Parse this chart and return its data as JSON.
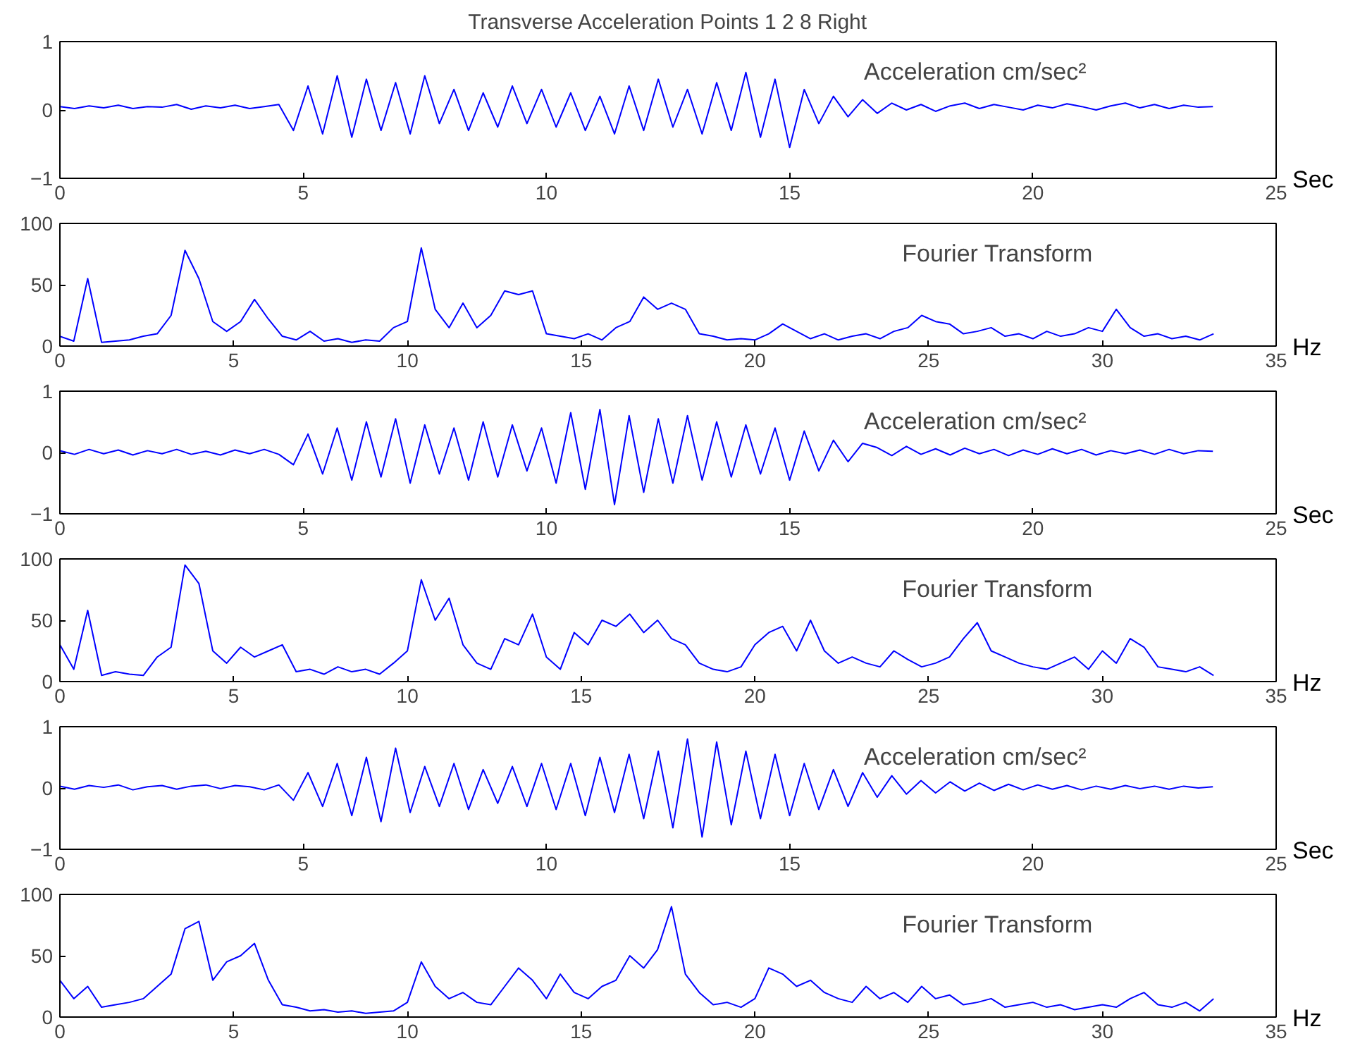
{
  "chart_data": [
    {
      "type": "line",
      "title": "Transverse Acceleration Points 1 2 8 Right",
      "xlabel": "Sec",
      "annotations": [
        "Acceleration  cm/sec²"
      ],
      "xlim": [
        0,
        25
      ],
      "xticks": [
        0,
        5,
        10,
        15,
        20,
        25
      ],
      "ylim": [
        -1,
        1
      ],
      "yticks": [
        -1,
        0,
        1
      ],
      "grid": false,
      "x": [
        0,
        0.3,
        0.6,
        0.9,
        1.2,
        1.5,
        1.8,
        2.1,
        2.4,
        2.7,
        3.0,
        3.3,
        3.6,
        3.9,
        4.2,
        4.5,
        4.8,
        5.1,
        5.4,
        5.7,
        6.0,
        6.3,
        6.6,
        6.9,
        7.2,
        7.5,
        7.8,
        8.1,
        8.4,
        8.7,
        9.0,
        9.3,
        9.6,
        9.9,
        10.2,
        10.5,
        10.8,
        11.1,
        11.4,
        11.7,
        12.0,
        12.3,
        12.6,
        12.9,
        13.2,
        13.5,
        13.8,
        14.1,
        14.4,
        14.7,
        15.0,
        15.3,
        15.6,
        15.9,
        16.2,
        16.5,
        16.8,
        17.1,
        17.4,
        17.7,
        18.0,
        18.3,
        18.6,
        18.9,
        19.2,
        19.5,
        19.8,
        20.1,
        20.4,
        20.7,
        21.0,
        21.3,
        21.6,
        21.9,
        22.2,
        22.5,
        22.8,
        23.1,
        23.4,
        23.7
      ],
      "series": [
        {
          "color": "#0000ff",
          "values": [
            0.05,
            0.02,
            0.06,
            0.03,
            0.07,
            0.02,
            0.05,
            0.04,
            0.08,
            0.01,
            0.06,
            0.03,
            0.07,
            0.02,
            0.05,
            0.08,
            -0.3,
            0.35,
            -0.35,
            0.5,
            -0.4,
            0.45,
            -0.3,
            0.4,
            -0.35,
            0.5,
            -0.2,
            0.3,
            -0.3,
            0.25,
            -0.25,
            0.35,
            -0.2,
            0.3,
            -0.25,
            0.25,
            -0.3,
            0.2,
            -0.35,
            0.35,
            -0.3,
            0.45,
            -0.25,
            0.3,
            -0.35,
            0.4,
            -0.3,
            0.55,
            -0.4,
            0.45,
            -0.55,
            0.3,
            -0.2,
            0.2,
            -0.1,
            0.15,
            -0.05,
            0.1,
            0,
            0.08,
            -0.02,
            0.06,
            0.1,
            0.02,
            0.08,
            0.04,
            0,
            0.07,
            0.03,
            0.09,
            0.05,
            0,
            0.06,
            0.1,
            0.03,
            0.08,
            0.02,
            0.07,
            0.04,
            0.05
          ]
        }
      ]
    },
    {
      "type": "line",
      "xlabel": "Hz",
      "annotations": [
        "Fourier Transform"
      ],
      "xlim": [
        0,
        35
      ],
      "xticks": [
        0,
        5,
        10,
        15,
        20,
        25,
        30,
        35
      ],
      "ylim": [
        0,
        100
      ],
      "yticks": [
        0,
        50,
        100
      ],
      "grid": false,
      "x": [
        0,
        0.4,
        0.8,
        1.2,
        1.6,
        2.0,
        2.4,
        2.8,
        3.2,
        3.6,
        4.0,
        4.4,
        4.8,
        5.2,
        5.6,
        6.0,
        6.4,
        6.8,
        7.2,
        7.6,
        8.0,
        8.4,
        8.8,
        9.2,
        9.6,
        10.0,
        10.4,
        10.8,
        11.2,
        11.6,
        12.0,
        12.4,
        12.8,
        13.2,
        13.6,
        14.0,
        14.4,
        14.8,
        15.2,
        15.6,
        16.0,
        16.4,
        16.8,
        17.2,
        17.6,
        18.0,
        18.4,
        18.8,
        19.2,
        19.6,
        20.0,
        20.4,
        20.8,
        21.2,
        21.6,
        22.0,
        22.4,
        22.8,
        23.2,
        23.6,
        24.0,
        24.4,
        24.8,
        25.2,
        25.6,
        26.0,
        26.4,
        26.8,
        27.2,
        27.6,
        28.0,
        28.4,
        28.8,
        29.2,
        29.6,
        30.0,
        30.4,
        30.8,
        31.2,
        31.6,
        32.0,
        32.4,
        32.8,
        33.2
      ],
      "series": [
        {
          "color": "#0000ff",
          "values": [
            8,
            4,
            55,
            3,
            4,
            5,
            8,
            10,
            25,
            78,
            55,
            20,
            12,
            20,
            38,
            22,
            8,
            5,
            12,
            4,
            6,
            3,
            5,
            4,
            15,
            20,
            80,
            30,
            15,
            35,
            15,
            25,
            45,
            42,
            45,
            10,
            8,
            6,
            10,
            5,
            15,
            20,
            40,
            30,
            35,
            30,
            10,
            8,
            5,
            6,
            5,
            10,
            18,
            12,
            6,
            10,
            5,
            8,
            10,
            6,
            12,
            15,
            25,
            20,
            18,
            10,
            12,
            15,
            8,
            10,
            6,
            12,
            8,
            10,
            15,
            12,
            30,
            15,
            8,
            10,
            6,
            8,
            5,
            10
          ]
        }
      ]
    },
    {
      "type": "line",
      "xlabel": "Sec",
      "annotations": [
        "Acceleration  cm/sec²"
      ],
      "xlim": [
        0,
        25
      ],
      "xticks": [
        0,
        5,
        10,
        15,
        20,
        25
      ],
      "ylim": [
        -1,
        1
      ],
      "yticks": [
        -1,
        0,
        1
      ],
      "grid": false,
      "x": [
        0,
        0.3,
        0.6,
        0.9,
        1.2,
        1.5,
        1.8,
        2.1,
        2.4,
        2.7,
        3.0,
        3.3,
        3.6,
        3.9,
        4.2,
        4.5,
        4.8,
        5.1,
        5.4,
        5.7,
        6.0,
        6.3,
        6.6,
        6.9,
        7.2,
        7.5,
        7.8,
        8.1,
        8.4,
        8.7,
        9.0,
        9.3,
        9.6,
        9.9,
        10.2,
        10.5,
        10.8,
        11.1,
        11.4,
        11.7,
        12.0,
        12.3,
        12.6,
        12.9,
        13.2,
        13.5,
        13.8,
        14.1,
        14.4,
        14.7,
        15.0,
        15.3,
        15.6,
        15.9,
        16.2,
        16.5,
        16.8,
        17.1,
        17.4,
        17.7,
        18.0,
        18.3,
        18.6,
        18.9,
        19.2,
        19.5,
        19.8,
        20.1,
        20.4,
        20.7,
        21.0,
        21.3,
        21.6,
        21.9,
        22.2,
        22.5,
        22.8,
        23.1,
        23.4,
        23.7
      ],
      "series": [
        {
          "color": "#0000ff",
          "values": [
            0.03,
            -0.03,
            0.05,
            -0.02,
            0.04,
            -0.04,
            0.03,
            -0.02,
            0.05,
            -0.03,
            0.02,
            -0.04,
            0.04,
            -0.02,
            0.05,
            -0.03,
            -0.2,
            0.3,
            -0.35,
            0.4,
            -0.45,
            0.5,
            -0.4,
            0.55,
            -0.5,
            0.45,
            -0.35,
            0.4,
            -0.45,
            0.5,
            -0.4,
            0.45,
            -0.3,
            0.4,
            -0.5,
            0.65,
            -0.6,
            0.7,
            -0.85,
            0.6,
            -0.65,
            0.55,
            -0.5,
            0.6,
            -0.45,
            0.5,
            -0.4,
            0.45,
            -0.35,
            0.4,
            -0.45,
            0.35,
            -0.3,
            0.2,
            -0.15,
            0.15,
            0.08,
            -0.05,
            0.1,
            -0.03,
            0.06,
            -0.04,
            0.07,
            -0.02,
            0.05,
            -0.05,
            0.04,
            -0.03,
            0.06,
            -0.02,
            0.05,
            -0.04,
            0.03,
            -0.02,
            0.04,
            -0.03,
            0.05,
            -0.02,
            0.03,
            0.02
          ]
        }
      ]
    },
    {
      "type": "line",
      "xlabel": "Hz",
      "annotations": [
        "Fourier Transform"
      ],
      "xlim": [
        0,
        35
      ],
      "xticks": [
        0,
        5,
        10,
        15,
        20,
        25,
        30,
        35
      ],
      "ylim": [
        0,
        100
      ],
      "yticks": [
        0,
        50,
        100
      ],
      "grid": false,
      "x": [
        0,
        0.4,
        0.8,
        1.2,
        1.6,
        2.0,
        2.4,
        2.8,
        3.2,
        3.6,
        4.0,
        4.4,
        4.8,
        5.2,
        5.6,
        6.0,
        6.4,
        6.8,
        7.2,
        7.6,
        8.0,
        8.4,
        8.8,
        9.2,
        9.6,
        10.0,
        10.4,
        10.8,
        11.2,
        11.6,
        12.0,
        12.4,
        12.8,
        13.2,
        13.6,
        14.0,
        14.4,
        14.8,
        15.2,
        15.6,
        16.0,
        16.4,
        16.8,
        17.2,
        17.6,
        18.0,
        18.4,
        18.8,
        19.2,
        19.6,
        20.0,
        20.4,
        20.8,
        21.2,
        21.6,
        22.0,
        22.4,
        22.8,
        23.2,
        23.6,
        24.0,
        24.4,
        24.8,
        25.2,
        25.6,
        26.0,
        26.4,
        26.8,
        27.2,
        27.6,
        28.0,
        28.4,
        28.8,
        29.2,
        29.6,
        30.0,
        30.4,
        30.8,
        31.2,
        31.6,
        32.0,
        32.4,
        32.8,
        33.2
      ],
      "series": [
        {
          "color": "#0000ff",
          "values": [
            30,
            10,
            58,
            5,
            8,
            6,
            5,
            20,
            28,
            95,
            80,
            25,
            15,
            28,
            20,
            25,
            30,
            8,
            10,
            6,
            12,
            8,
            10,
            6,
            15,
            25,
            83,
            50,
            68,
            30,
            15,
            10,
            35,
            30,
            55,
            20,
            10,
            40,
            30,
            50,
            45,
            55,
            40,
            50,
            35,
            30,
            15,
            10,
            8,
            12,
            30,
            40,
            45,
            25,
            50,
            25,
            15,
            20,
            15,
            12,
            25,
            18,
            12,
            15,
            20,
            35,
            48,
            25,
            20,
            15,
            12,
            10,
            15,
            20,
            10,
            25,
            15,
            35,
            28,
            12,
            10,
            8,
            12,
            5
          ]
        }
      ]
    },
    {
      "type": "line",
      "xlabel": "Sec",
      "annotations": [
        "Acceleration  cm/sec²"
      ],
      "xlim": [
        0,
        25
      ],
      "xticks": [
        0,
        5,
        10,
        15,
        20,
        25
      ],
      "ylim": [
        -1,
        1
      ],
      "yticks": [
        -1,
        0,
        1
      ],
      "grid": false,
      "x": [
        0,
        0.3,
        0.6,
        0.9,
        1.2,
        1.5,
        1.8,
        2.1,
        2.4,
        2.7,
        3.0,
        3.3,
        3.6,
        3.9,
        4.2,
        4.5,
        4.8,
        5.1,
        5.4,
        5.7,
        6.0,
        6.3,
        6.6,
        6.9,
        7.2,
        7.5,
        7.8,
        8.1,
        8.4,
        8.7,
        9.0,
        9.3,
        9.6,
        9.9,
        10.2,
        10.5,
        10.8,
        11.1,
        11.4,
        11.7,
        12.0,
        12.3,
        12.6,
        12.9,
        13.2,
        13.5,
        13.8,
        14.1,
        14.4,
        14.7,
        15.0,
        15.3,
        15.6,
        15.9,
        16.2,
        16.5,
        16.8,
        17.1,
        17.4,
        17.7,
        18.0,
        18.3,
        18.6,
        18.9,
        19.2,
        19.5,
        19.8,
        20.1,
        20.4,
        20.7,
        21.0,
        21.3,
        21.6,
        21.9,
        22.2,
        22.5,
        22.8,
        23.1,
        23.4,
        23.7
      ],
      "series": [
        {
          "color": "#0000ff",
          "values": [
            0.03,
            -0.02,
            0.04,
            0.01,
            0.05,
            -0.03,
            0.02,
            0.04,
            -0.02,
            0.03,
            0.05,
            -0.01,
            0.04,
            0.02,
            -0.03,
            0.05,
            -0.2,
            0.25,
            -0.3,
            0.4,
            -0.45,
            0.5,
            -0.55,
            0.65,
            -0.4,
            0.35,
            -0.3,
            0.4,
            -0.35,
            0.3,
            -0.25,
            0.35,
            -0.3,
            0.4,
            -0.35,
            0.4,
            -0.45,
            0.5,
            -0.4,
            0.55,
            -0.5,
            0.6,
            -0.65,
            0.8,
            -0.8,
            0.75,
            -0.6,
            0.6,
            -0.5,
            0.55,
            -0.45,
            0.4,
            -0.35,
            0.3,
            -0.3,
            0.25,
            -0.15,
            0.2,
            -0.1,
            0.12,
            -0.08,
            0.1,
            -0.05,
            0.08,
            -0.04,
            0.06,
            -0.03,
            0.05,
            -0.02,
            0.04,
            -0.03,
            0.03,
            -0.02,
            0.04,
            -0.01,
            0.03,
            -0.02,
            0.03,
            0,
            0.02
          ]
        }
      ]
    },
    {
      "type": "line",
      "xlabel": "Hz",
      "annotations": [
        "Fourier Transform"
      ],
      "xlim": [
        0,
        35
      ],
      "xticks": [
        0,
        5,
        10,
        15,
        20,
        25,
        30,
        35
      ],
      "ylim": [
        0,
        100
      ],
      "yticks": [
        0,
        50,
        100
      ],
      "grid": false,
      "x": [
        0,
        0.4,
        0.8,
        1.2,
        1.6,
        2.0,
        2.4,
        2.8,
        3.2,
        3.6,
        4.0,
        4.4,
        4.8,
        5.2,
        5.6,
        6.0,
        6.4,
        6.8,
        7.2,
        7.6,
        8.0,
        8.4,
        8.8,
        9.2,
        9.6,
        10.0,
        10.4,
        10.8,
        11.2,
        11.6,
        12.0,
        12.4,
        12.8,
        13.2,
        13.6,
        14.0,
        14.4,
        14.8,
        15.2,
        15.6,
        16.0,
        16.4,
        16.8,
        17.2,
        17.6,
        18.0,
        18.4,
        18.8,
        19.2,
        19.6,
        20.0,
        20.4,
        20.8,
        21.2,
        21.6,
        22.0,
        22.4,
        22.8,
        23.2,
        23.6,
        24.0,
        24.4,
        24.8,
        25.2,
        25.6,
        26.0,
        26.4,
        26.8,
        27.2,
        27.6,
        28.0,
        28.4,
        28.8,
        29.2,
        29.6,
        30.0,
        30.4,
        30.8,
        31.2,
        31.6,
        32.0,
        32.4,
        32.8,
        33.2
      ],
      "series": [
        {
          "color": "#0000ff",
          "values": [
            30,
            15,
            25,
            8,
            10,
            12,
            15,
            25,
            35,
            72,
            78,
            30,
            45,
            50,
            60,
            30,
            10,
            8,
            5,
            6,
            4,
            5,
            3,
            4,
            5,
            12,
            45,
            25,
            15,
            20,
            12,
            10,
            25,
            40,
            30,
            15,
            35,
            20,
            15,
            25,
            30,
            50,
            40,
            55,
            90,
            35,
            20,
            10,
            12,
            8,
            15,
            40,
            35,
            25,
            30,
            20,
            15,
            12,
            25,
            15,
            20,
            12,
            25,
            15,
            18,
            10,
            12,
            15,
            8,
            10,
            12,
            8,
            10,
            6,
            8,
            10,
            8,
            15,
            20,
            10,
            8,
            12,
            5,
            15
          ]
        }
      ]
    }
  ]
}
